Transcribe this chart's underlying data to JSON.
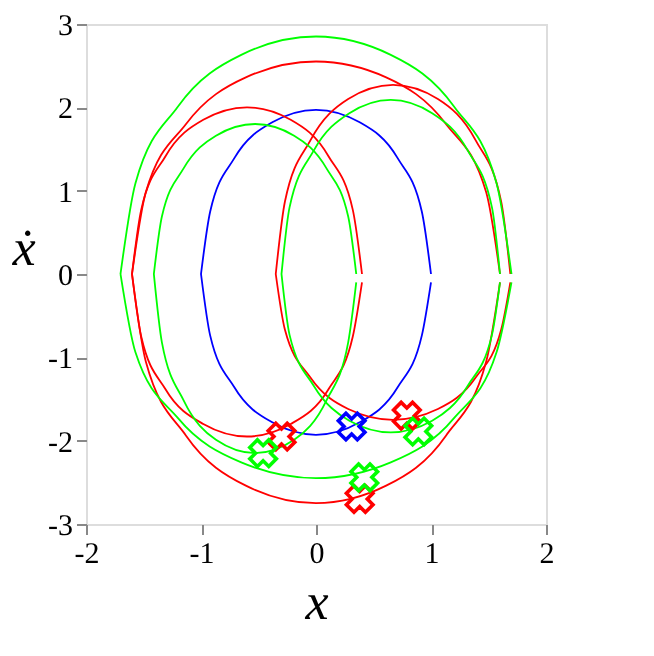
{
  "chart_data": {
    "type": "line",
    "xlabel": "x",
    "ylabel": "ẋ",
    "xlim": [
      -2,
      2
    ],
    "xticks": [
      -2,
      -1,
      0,
      1,
      2
    ],
    "ylim": [
      -3,
      3
    ],
    "yticks": [
      -3,
      -2,
      -1,
      0,
      1,
      2,
      3
    ],
    "grid": false,
    "legend": false,
    "line_style": "solid",
    "series": [
      {
        "type": "line",
        "color": "#0000ff",
        "x": [
          -1,
          -0.92,
          -0.71,
          -0.38,
          0,
          0.38,
          0.71,
          0.92,
          1
        ],
        "values": [
          0,
          0.75,
          1.39,
          1.82,
          1.97,
          1.82,
          1.39,
          0.75,
          0
        ]
      },
      {
        "type": "line",
        "color": "#0000ff",
        "x": [
          -1,
          -0.92,
          -0.71,
          -0.38,
          0,
          0.38,
          0.71,
          0.92,
          1
        ],
        "values": [
          0,
          -0.74,
          -1.36,
          -1.78,
          -1.93,
          -1.78,
          -1.36,
          -0.74,
          -0.1
        ]
      },
      {
        "type": "line",
        "color": "#ff0000",
        "x": [
          -1.6,
          -1.52,
          -1.31,
          -0.98,
          -0.6,
          -0.22,
          0.11,
          0.32,
          0.4
        ],
        "values": [
          0,
          0.77,
          1.41,
          1.85,
          2.0,
          1.85,
          1.41,
          0.77,
          0
        ]
      },
      {
        "type": "line",
        "color": "#ff0000",
        "x": [
          -1.6,
          -1.52,
          -1.31,
          -0.98,
          -0.6,
          -0.22,
          0.11,
          0.32,
          0.4
        ],
        "values": [
          0,
          -0.75,
          -1.38,
          -1.8,
          -1.95,
          -1.8,
          -1.38,
          -0.75,
          -0.1
        ]
      },
      {
        "type": "line",
        "color": "#ff0000",
        "x": [
          -0.35,
          -0.27,
          -0.05,
          0.28,
          0.67,
          1.06,
          1.39,
          1.61,
          1.69
        ],
        "values": [
          0,
          0.87,
          1.6,
          2.1,
          2.27,
          2.1,
          1.6,
          0.87,
          0
        ]
      },
      {
        "type": "line",
        "color": "#ff0000",
        "x": [
          -0.35,
          -0.27,
          -0.05,
          0.28,
          0.67,
          1.06,
          1.39,
          1.61,
          1.69
        ],
        "values": [
          0,
          -0.67,
          -1.24,
          -1.62,
          -1.75,
          -1.62,
          -1.24,
          -0.67,
          -0.1
        ]
      },
      {
        "type": "line",
        "color": "#ff0000",
        "x": [
          -1.6,
          -1.48,
          -1.13,
          -0.61,
          0,
          0.61,
          1.13,
          1.48,
          1.6
        ],
        "values": [
          0,
          0.98,
          1.8,
          2.36,
          2.55,
          2.36,
          1.8,
          0.98,
          0
        ]
      },
      {
        "type": "line",
        "color": "#ff0000",
        "x": [
          -1.6,
          -1.48,
          -1.13,
          -0.61,
          0,
          0.61,
          1.13,
          1.48,
          1.6
        ],
        "values": [
          0,
          -1.05,
          -1.94,
          -2.54,
          -2.75,
          -2.54,
          -1.94,
          -1.05,
          -0.1
        ]
      },
      {
        "type": "line",
        "color": "#00ff00",
        "x": [
          -1.7,
          -1.57,
          -1.2,
          -0.65,
          0,
          0.65,
          1.2,
          1.57,
          1.7
        ],
        "values": [
          0,
          1.09,
          2.01,
          2.63,
          2.85,
          2.63,
          2.01,
          1.09,
          0
        ]
      },
      {
        "type": "line",
        "color": "#00ff00",
        "x": [
          -1.7,
          -1.57,
          -1.2,
          -0.65,
          0,
          0.65,
          1.2,
          1.57,
          1.7
        ],
        "values": [
          0,
          -0.94,
          -1.73,
          -2.26,
          -2.45,
          -2.26,
          -1.73,
          -0.94,
          -0.1
        ]
      },
      {
        "type": "line",
        "color": "#00ff00",
        "x": [
          -1.41,
          -1.34,
          -1.15,
          -0.87,
          -0.53,
          -0.19,
          0.09,
          0.28,
          0.35
        ],
        "values": [
          0,
          0.69,
          1.27,
          1.66,
          1.8,
          1.66,
          1.27,
          0.69,
          0
        ]
      },
      {
        "type": "line",
        "color": "#00ff00",
        "x": [
          -1.41,
          -1.34,
          -1.15,
          -0.87,
          -0.53,
          -0.19,
          0.09,
          0.28,
          0.35
        ],
        "values": [
          0,
          -0.82,
          -1.52,
          -1.99,
          -2.15,
          -1.99,
          -1.52,
          -0.82,
          -0.1
        ]
      },
      {
        "type": "line",
        "color": "#00ff00",
        "x": [
          -0.3,
          -0.23,
          -0.02,
          0.29,
          0.65,
          1.01,
          1.32,
          1.53,
          1.6
        ],
        "values": [
          0,
          0.8,
          1.48,
          1.93,
          2.09,
          1.93,
          1.48,
          0.8,
          0
        ]
      },
      {
        "type": "line",
        "color": "#00ff00",
        "x": [
          -0.3,
          -0.23,
          -0.02,
          0.29,
          0.65,
          1.01,
          1.32,
          1.53,
          1.6
        ],
        "values": [
          0,
          -0.73,
          -1.34,
          -1.76,
          -1.9,
          -1.76,
          -1.34,
          -0.73,
          -0.1
        ]
      },
      {
        "type": "scatter",
        "marker": "cross",
        "color": "#ff0000",
        "x": [
          -0.3,
          0.79,
          0.38
        ],
        "values": [
          -1.95,
          -1.7,
          -2.7
        ]
      },
      {
        "type": "scatter",
        "marker": "cross",
        "color": "#00ff00",
        "x": [
          -0.46,
          0.89,
          0.42
        ],
        "values": [
          -2.15,
          -1.89,
          -2.44
        ]
      },
      {
        "type": "scatter",
        "marker": "cross",
        "color": "#0000ff",
        "x": [
          0.31
        ],
        "values": [
          -1.83
        ]
      }
    ]
  }
}
